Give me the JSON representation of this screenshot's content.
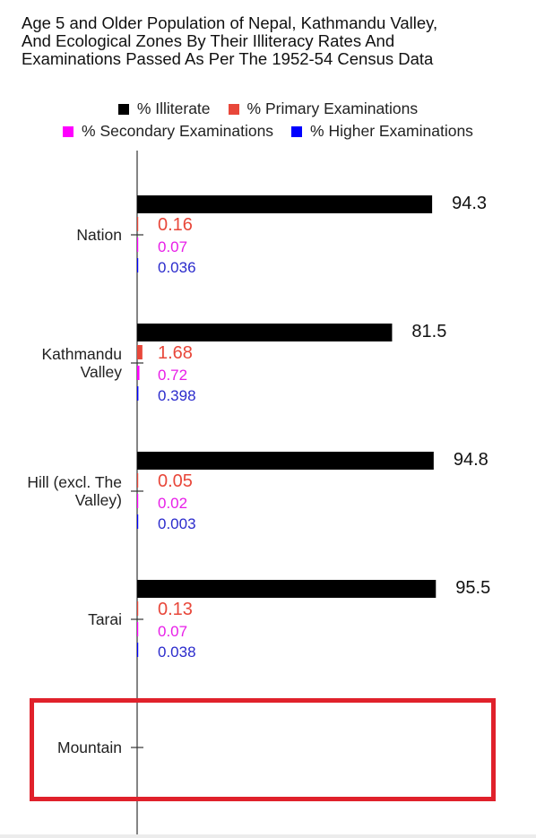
{
  "chart_data": {
    "type": "bar",
    "orientation": "horizontal",
    "title": "Age 5 and Older Population of Nepal, Kathmandu Valley,\nAnd Ecological Zones By Their Illiteracy Rates And\nExaminations Passed As Per The 1952-54 Census Data",
    "categories": [
      "Nation",
      "Kathmandu Valley",
      "Hill (excl. The Valley)",
      "Tarai",
      "Mountain"
    ],
    "category_lines": [
      [
        "Nation"
      ],
      [
        "Kathmandu",
        "Valley"
      ],
      [
        "Hill (excl. The",
        "Valley)"
      ],
      [
        "Tarai"
      ],
      [
        "Mountain"
      ]
    ],
    "series": [
      {
        "name": "% Illiterate",
        "color": "#000000",
        "label_color": "#111111",
        "values": [
          94.3,
          81.5,
          94.8,
          95.5,
          null
        ],
        "labels": [
          "94.3",
          "81.5",
          "94.8",
          "95.5",
          ""
        ]
      },
      {
        "name": "% Primary Examinations",
        "color": "#e8473a",
        "label_color": "#e8473a",
        "values": [
          0.16,
          1.68,
          0.05,
          0.13,
          null
        ],
        "labels": [
          "0.16",
          "1.68",
          "0.05",
          "0.13",
          ""
        ]
      },
      {
        "name": "% Secondary Examinations",
        "color": "#ff00ff",
        "label_color": "#e81ee8",
        "values": [
          0.07,
          0.72,
          0.02,
          0.07,
          null
        ],
        "labels": [
          "0.07",
          "0.72",
          "0.02",
          "0.07",
          ""
        ]
      },
      {
        "name": "% Higher Examinations",
        "color": "#0000ff",
        "label_color": "#2b2bcc",
        "values": [
          0.036,
          0.398,
          0.003,
          0.038,
          null
        ],
        "labels": [
          "0.036",
          "0.398",
          "0.003",
          "0.038",
          ""
        ]
      }
    ],
    "xlim": [
      0,
      100
    ],
    "grid": false,
    "legend_position": "top",
    "highlighted_category": "Mountain",
    "highlight_color": "#e0212b"
  }
}
